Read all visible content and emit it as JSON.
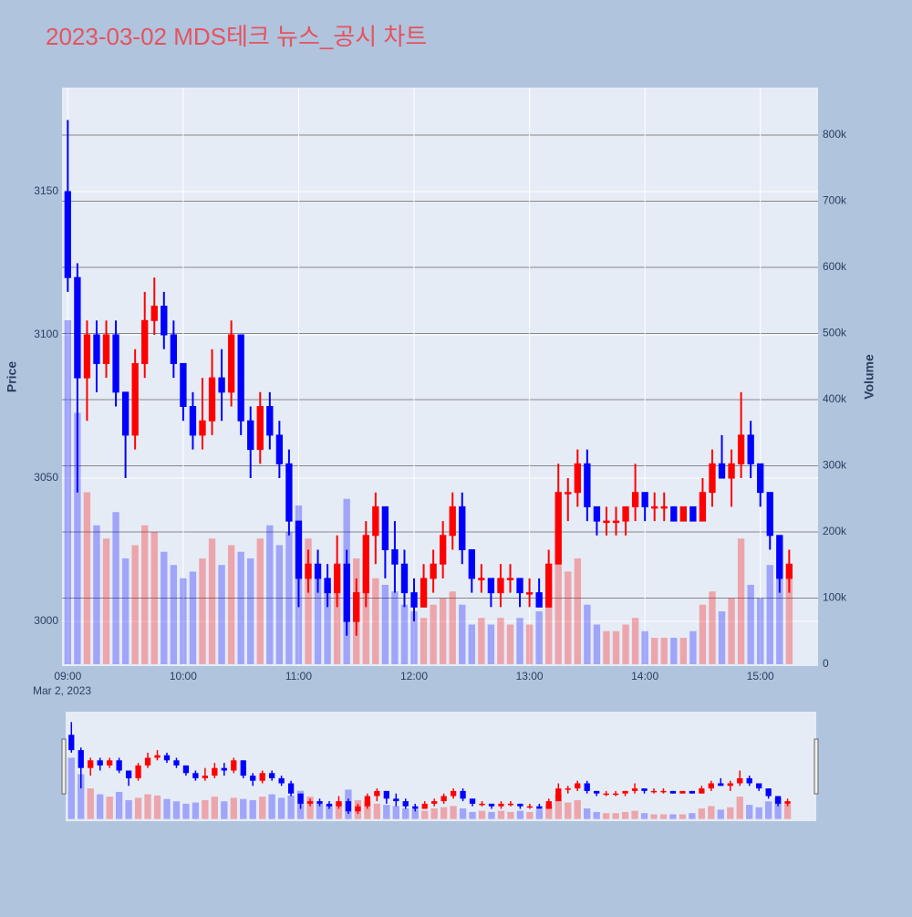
{
  "chart_data": {
    "type": "candlestick",
    "title": "2023-03-02 MDS테크 뉴스_공시 차트",
    "y_label": "Price",
    "y2_label": "Volume",
    "x_date_label": "Mar 2, 2023",
    "increasing_color": "#ff0000",
    "decreasing_color": "#0000ff",
    "x": [
      "09:00",
      "09:05",
      "09:10",
      "09:15",
      "09:20",
      "09:25",
      "09:30",
      "09:35",
      "09:40",
      "09:45",
      "09:50",
      "09:55",
      "10:00",
      "10:05",
      "10:10",
      "10:15",
      "10:20",
      "10:25",
      "10:30",
      "10:35",
      "10:40",
      "10:45",
      "10:50",
      "10:55",
      "11:00",
      "11:05",
      "11:10",
      "11:15",
      "11:20",
      "11:25",
      "11:30",
      "11:35",
      "11:40",
      "11:45",
      "11:50",
      "11:55",
      "12:00",
      "12:05",
      "12:10",
      "12:15",
      "12:20",
      "12:25",
      "12:30",
      "12:35",
      "12:40",
      "12:45",
      "12:50",
      "12:55",
      "13:00",
      "13:05",
      "13:10",
      "13:15",
      "13:20",
      "13:25",
      "13:30",
      "13:35",
      "13:40",
      "13:45",
      "13:50",
      "13:55",
      "14:00",
      "14:05",
      "14:10",
      "14:15",
      "14:20",
      "14:25",
      "14:30",
      "14:35",
      "14:40",
      "14:45",
      "14:50",
      "14:55",
      "15:00",
      "15:05",
      "15:10",
      "15:15"
    ],
    "open": [
      3150,
      3120,
      3085,
      3100,
      3090,
      3100,
      3080,
      3065,
      3090,
      3105,
      3110,
      3100,
      3090,
      3075,
      3065,
      3070,
      3085,
      3080,
      3100,
      3070,
      3060,
      3075,
      3065,
      3055,
      3035,
      3015,
      3020,
      3015,
      3010,
      3020,
      3000,
      3010,
      3030,
      3040,
      3025,
      3020,
      3010,
      3005,
      3015,
      3020,
      3030,
      3040,
      3025,
      3015,
      3015,
      3010,
      3015,
      3015,
      3010,
      3010,
      3005,
      3020,
      3045,
      3045,
      3055,
      3040,
      3035,
      3035,
      3035,
      3040,
      3045,
      3040,
      3040,
      3040,
      3035,
      3040,
      3035,
      3045,
      3055,
      3050,
      3055,
      3065,
      3055,
      3045,
      3030,
      3015
    ],
    "high": [
      3175,
      3125,
      3105,
      3105,
      3105,
      3105,
      3080,
      3095,
      3115,
      3120,
      3115,
      3105,
      3090,
      3080,
      3085,
      3095,
      3095,
      3105,
      3100,
      3075,
      3080,
      3080,
      3070,
      3060,
      3035,
      3025,
      3025,
      3020,
      3030,
      3025,
      3015,
      3035,
      3045,
      3040,
      3035,
      3025,
      3015,
      3020,
      3025,
      3035,
      3045,
      3045,
      3025,
      3020,
      3015,
      3020,
      3020,
      3015,
      3015,
      3015,
      3025,
      3055,
      3050,
      3060,
      3060,
      3040,
      3040,
      3040,
      3040,
      3055,
      3045,
      3045,
      3045,
      3040,
      3040,
      3040,
      3050,
      3060,
      3065,
      3060,
      3080,
      3070,
      3055,
      3045,
      3030,
      3025
    ],
    "low": [
      3115,
      3045,
      3070,
      3080,
      3085,
      3075,
      3050,
      3060,
      3085,
      3100,
      3095,
      3085,
      3070,
      3060,
      3060,
      3065,
      3070,
      3075,
      3065,
      3050,
      3055,
      3060,
      3050,
      3030,
      3005,
      3010,
      3010,
      3005,
      3005,
      2995,
      2995,
      3005,
      3020,
      3015,
      3010,
      3005,
      3000,
      3005,
      3010,
      3015,
      3025,
      3020,
      3010,
      3010,
      3005,
      3005,
      3010,
      3005,
      3005,
      3005,
      3005,
      3020,
      3035,
      3040,
      3035,
      3030,
      3030,
      3030,
      3030,
      3035,
      3035,
      3035,
      3035,
      3035,
      3035,
      3035,
      3035,
      3040,
      3050,
      3040,
      3050,
      3050,
      3040,
      3025,
      3010,
      3010
    ],
    "close": [
      3120,
      3085,
      3100,
      3090,
      3100,
      3080,
      3065,
      3090,
      3105,
      3110,
      3100,
      3090,
      3075,
      3065,
      3070,
      3085,
      3080,
      3100,
      3070,
      3060,
      3075,
      3065,
      3055,
      3035,
      3015,
      3020,
      3015,
      3010,
      3020,
      3000,
      3010,
      3030,
      3040,
      3025,
      3020,
      3010,
      3005,
      3015,
      3020,
      3030,
      3040,
      3025,
      3015,
      3015,
      3010,
      3015,
      3015,
      3010,
      3010,
      3005,
      3020,
      3045,
      3045,
      3055,
      3040,
      3035,
      3035,
      3035,
      3040,
      3045,
      3040,
      3040,
      3040,
      3035,
      3040,
      3035,
      3045,
      3055,
      3050,
      3055,
      3065,
      3055,
      3045,
      3030,
      3015,
      3020
    ],
    "volume": [
      520000,
      380000,
      260000,
      210000,
      190000,
      230000,
      160000,
      180000,
      210000,
      200000,
      170000,
      150000,
      130000,
      140000,
      160000,
      190000,
      150000,
      180000,
      170000,
      160000,
      190000,
      210000,
      180000,
      200000,
      240000,
      190000,
      130000,
      120000,
      140000,
      250000,
      160000,
      150000,
      130000,
      120000,
      110000,
      90000,
      80000,
      70000,
      90000,
      100000,
      110000,
      90000,
      60000,
      70000,
      60000,
      70000,
      60000,
      70000,
      60000,
      80000,
      120000,
      210000,
      140000,
      160000,
      90000,
      60000,
      50000,
      50000,
      60000,
      70000,
      50000,
      40000,
      40000,
      40000,
      40000,
      50000,
      90000,
      110000,
      80000,
      100000,
      190000,
      120000,
      100000,
      150000,
      180000,
      130000
    ],
    "xlim": [
      "08:57",
      "15:30"
    ],
    "xticks": [
      "09:00",
      "10:00",
      "11:00",
      "12:00",
      "13:00",
      "14:00",
      "15:00"
    ],
    "ylim": [
      2984.4,
      3186.3
    ],
    "yticks": [
      3000,
      3050,
      3100,
      3150
    ],
    "y2lim": [
      -2800,
      871700
    ],
    "y2ticks": [
      0,
      {
        "value": 100000,
        "label": "100k"
      },
      {
        "value": 200000,
        "label": "200k"
      },
      {
        "value": 300000,
        "label": "300k"
      },
      {
        "value": 400000,
        "label": "400k"
      },
      {
        "value": 500000,
        "label": "500k"
      },
      {
        "value": 600000,
        "label": "600k"
      },
      {
        "value": 700000,
        "label": "700k"
      },
      {
        "value": 800000,
        "label": "800k"
      }
    ],
    "grid": true
  }
}
